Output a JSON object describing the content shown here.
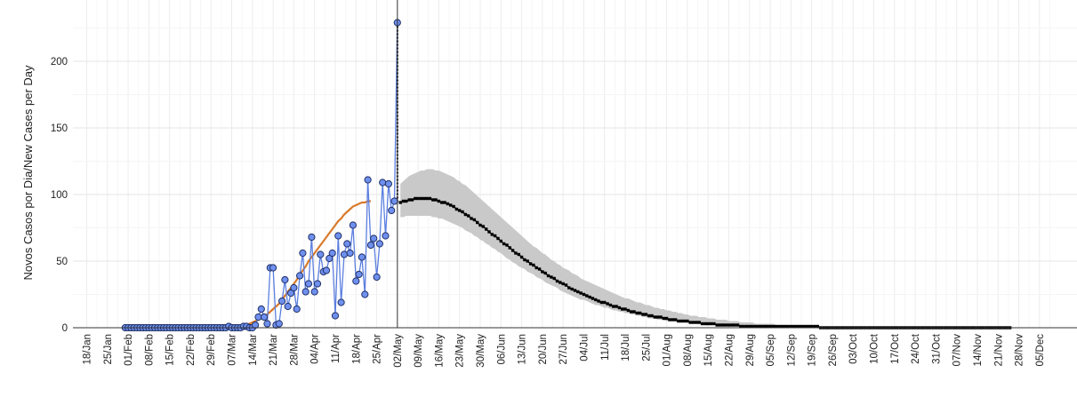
{
  "chart_data": {
    "type": "line",
    "title": "",
    "xlabel": "",
    "ylabel": "Novos Casos por Dia/New Cases per Day",
    "ylim": [
      0,
      235
    ],
    "grid": true,
    "y_ticks": [
      0,
      50,
      100,
      150,
      200
    ],
    "x_ticks": [
      "18/Jan",
      "25/Jan",
      "01/Feb",
      "08/Feb",
      "15/Feb",
      "22/Feb",
      "29/Feb",
      "07/Mar",
      "14/Mar",
      "21/Mar",
      "28/Mar",
      "04/Apr",
      "11/Apr",
      "18/Apr",
      "25/Apr",
      "02/May",
      "09/May",
      "16/May",
      "23/May",
      "30/May",
      "06/Jun",
      "13/Jun",
      "20/Jun",
      "27/Jun",
      "04/Jul",
      "11/Jul",
      "18/Jul",
      "25/Jul",
      "01/Aug",
      "08/Aug",
      "15/Aug",
      "22/Aug",
      "29/Aug",
      "05/Sep",
      "12/Sep",
      "19/Sep",
      "26/Sep",
      "03/Oct",
      "10/Oct",
      "17/Oct",
      "24/Oct",
      "31/Oct",
      "07/Nov",
      "14/Nov",
      "21/Nov",
      "28/Nov",
      "05/Dec"
    ],
    "series": [
      {
        "kind": "observed",
        "color": "#5b7fe0",
        "start": "2020-01-31",
        "values": [
          0,
          0,
          0,
          0,
          0,
          0,
          0,
          0,
          0,
          0,
          0,
          0,
          0,
          0,
          0,
          0,
          0,
          0,
          0,
          0,
          0,
          0,
          0,
          0,
          0,
          0,
          0,
          0,
          0,
          0,
          0,
          0,
          0,
          0,
          0,
          1,
          0,
          0,
          0,
          0,
          1,
          1,
          0,
          0,
          2,
          8,
          14,
          8,
          3,
          45,
          45,
          2,
          3,
          20,
          36,
          16,
          26,
          30,
          14,
          39,
          56,
          27,
          33,
          68,
          27,
          33,
          55,
          42,
          43,
          52,
          56,
          9,
          69,
          19,
          55,
          63,
          56,
          77,
          35,
          40,
          53,
          25,
          111,
          62,
          67,
          38,
          63,
          109,
          69,
          108,
          88,
          95,
          229
        ]
      },
      {
        "kind": "fitted",
        "color": "#d97a2b",
        "start": "2020-03-10",
        "values": [
          1,
          2,
          2,
          3,
          4,
          5,
          6,
          7,
          8,
          10,
          12,
          14,
          16,
          18,
          21,
          24,
          27,
          30,
          33,
          36,
          40,
          43,
          46,
          50,
          53,
          56,
          59,
          62,
          65,
          68,
          71,
          74,
          77,
          80,
          82,
          85,
          87,
          89,
          91,
          92,
          93,
          94,
          94,
          95,
          95
        ]
      },
      {
        "kind": "forecast",
        "color": "#000000",
        "start": "2020-05-03",
        "values": [
          94,
          95,
          95,
          96,
          96,
          97,
          97,
          97,
          97,
          97,
          97,
          96,
          96,
          95,
          94,
          94,
          93,
          92,
          91,
          89,
          88,
          87,
          85,
          84,
          82,
          81,
          79,
          77,
          76,
          74,
          72,
          70,
          69,
          67,
          65,
          63,
          62,
          60,
          58,
          56,
          55,
          53,
          51,
          50,
          48,
          47,
          45,
          44,
          42,
          41,
          39,
          38,
          37,
          35,
          34,
          33,
          32,
          30,
          29,
          28,
          27,
          26,
          25,
          24,
          23,
          22,
          21,
          20,
          19,
          19,
          18,
          17,
          16,
          16,
          15,
          14,
          14,
          13,
          12,
          12,
          11,
          11,
          10,
          10,
          9,
          9,
          8,
          8,
          8,
          7,
          7,
          6,
          6,
          6,
          5,
          5,
          5,
          5,
          4,
          4,
          4,
          4,
          3,
          3,
          3,
          3,
          3,
          2,
          2,
          2,
          2,
          2,
          2,
          2,
          2,
          1,
          1,
          1,
          1,
          1,
          1,
          1,
          1,
          1,
          1,
          1,
          1,
          1,
          1,
          1,
          1,
          1,
          1,
          1,
          1,
          1,
          1,
          1,
          1,
          1,
          1,
          1,
          0,
          0,
          0,
          0,
          0,
          0,
          0,
          0,
          0,
          0,
          0,
          0,
          0,
          0,
          0,
          0,
          0,
          0,
          0,
          0,
          0,
          0,
          0,
          0,
          0,
          0,
          0,
          0,
          0,
          0,
          0,
          0,
          0,
          0,
          0,
          0,
          0,
          0,
          0,
          0,
          0,
          0,
          0,
          0,
          0,
          0,
          0,
          0,
          0,
          0,
          0,
          0,
          0,
          0,
          0,
          0,
          0,
          0,
          0,
          0,
          0,
          0,
          0,
          0,
          0
        ],
        "lower": [
          83,
          83,
          84,
          84,
          84,
          84,
          84,
          84,
          84,
          84,
          84,
          83,
          83,
          82,
          82,
          81,
          80,
          79,
          78,
          77,
          76,
          75,
          73,
          72,
          71,
          69,
          68,
          66,
          65,
          63,
          62,
          60,
          59,
          57,
          56,
          54,
          52,
          51,
          49,
          48,
          46,
          45,
          44,
          42,
          41,
          40,
          38,
          37,
          36,
          34,
          33,
          32,
          31,
          30,
          28,
          27,
          26,
          25,
          24,
          23,
          22,
          21,
          21,
          20,
          19,
          18,
          17,
          17,
          16,
          15,
          15,
          14,
          13,
          13,
          12,
          12,
          11,
          11,
          10,
          10,
          9,
          9,
          8,
          8,
          7,
          7,
          7,
          6,
          6,
          6,
          5,
          5,
          5,
          5,
          4,
          4,
          4,
          4,
          3,
          3,
          3,
          3,
          3,
          2,
          2,
          2,
          2,
          2,
          2,
          2,
          1,
          1,
          1,
          1,
          1,
          1,
          1,
          1,
          1,
          1,
          1,
          1,
          1,
          1,
          1,
          1,
          1,
          0,
          0,
          0,
          0,
          0,
          0,
          0,
          0,
          0,
          0,
          0,
          0,
          0,
          0,
          0,
          0,
          0,
          0,
          0,
          0,
          0,
          0,
          0,
          0,
          0,
          0,
          0,
          0,
          0,
          0,
          0,
          0,
          0,
          0,
          0,
          0,
          0,
          0,
          0,
          0,
          0,
          0,
          0,
          0,
          0,
          0,
          0,
          0,
          0,
          0,
          0,
          0,
          0,
          0,
          0,
          0,
          0,
          0,
          0,
          0,
          0,
          0,
          0,
          0,
          0,
          0,
          0,
          0,
          0,
          0,
          0,
          0,
          0,
          0,
          0,
          0,
          0,
          0,
          0,
          0
        ],
        "upper": [
          108,
          110,
          112,
          114,
          115,
          116,
          117,
          118,
          118,
          119,
          119,
          119,
          118,
          118,
          117,
          116,
          115,
          114,
          113,
          111,
          110,
          108,
          107,
          105,
          103,
          101,
          99,
          97,
          95,
          93,
          91,
          89,
          87,
          85,
          83,
          81,
          79,
          77,
          75,
          73,
          71,
          69,
          67,
          65,
          63,
          61,
          60,
          58,
          56,
          55,
          53,
          51,
          50,
          48,
          47,
          45,
          44,
          43,
          41,
          40,
          39,
          37,
          36,
          35,
          34,
          33,
          32,
          31,
          30,
          29,
          28,
          27,
          26,
          25,
          24,
          23,
          22,
          22,
          21,
          20,
          19,
          19,
          18,
          17,
          17,
          16,
          15,
          15,
          14,
          14,
          13,
          13,
          12,
          12,
          11,
          11,
          10,
          10,
          9,
          9,
          9,
          8,
          8,
          8,
          7,
          7,
          7,
          6,
          6,
          6,
          6,
          5,
          5,
          5,
          5,
          4,
          4,
          4,
          4,
          4,
          3,
          3,
          3,
          3,
          3,
          3,
          3,
          2,
          2,
          2,
          2,
          2,
          2,
          2,
          2,
          2,
          2,
          1,
          1,
          1,
          1,
          1,
          1,
          1,
          1,
          1,
          1,
          1,
          1,
          1,
          1,
          1,
          1,
          1,
          1,
          1,
          1,
          1,
          1,
          1,
          1,
          1,
          0,
          0,
          0,
          0,
          0,
          0,
          0,
          0,
          0,
          0,
          0,
          0,
          0,
          0,
          0,
          0,
          0,
          0,
          0,
          0,
          0,
          0,
          0,
          0,
          0,
          0,
          0,
          0,
          0,
          0,
          0,
          0,
          0,
          0,
          0,
          0,
          0,
          0,
          0,
          0,
          0,
          0,
          0,
          0,
          0
        ]
      }
    ]
  }
}
